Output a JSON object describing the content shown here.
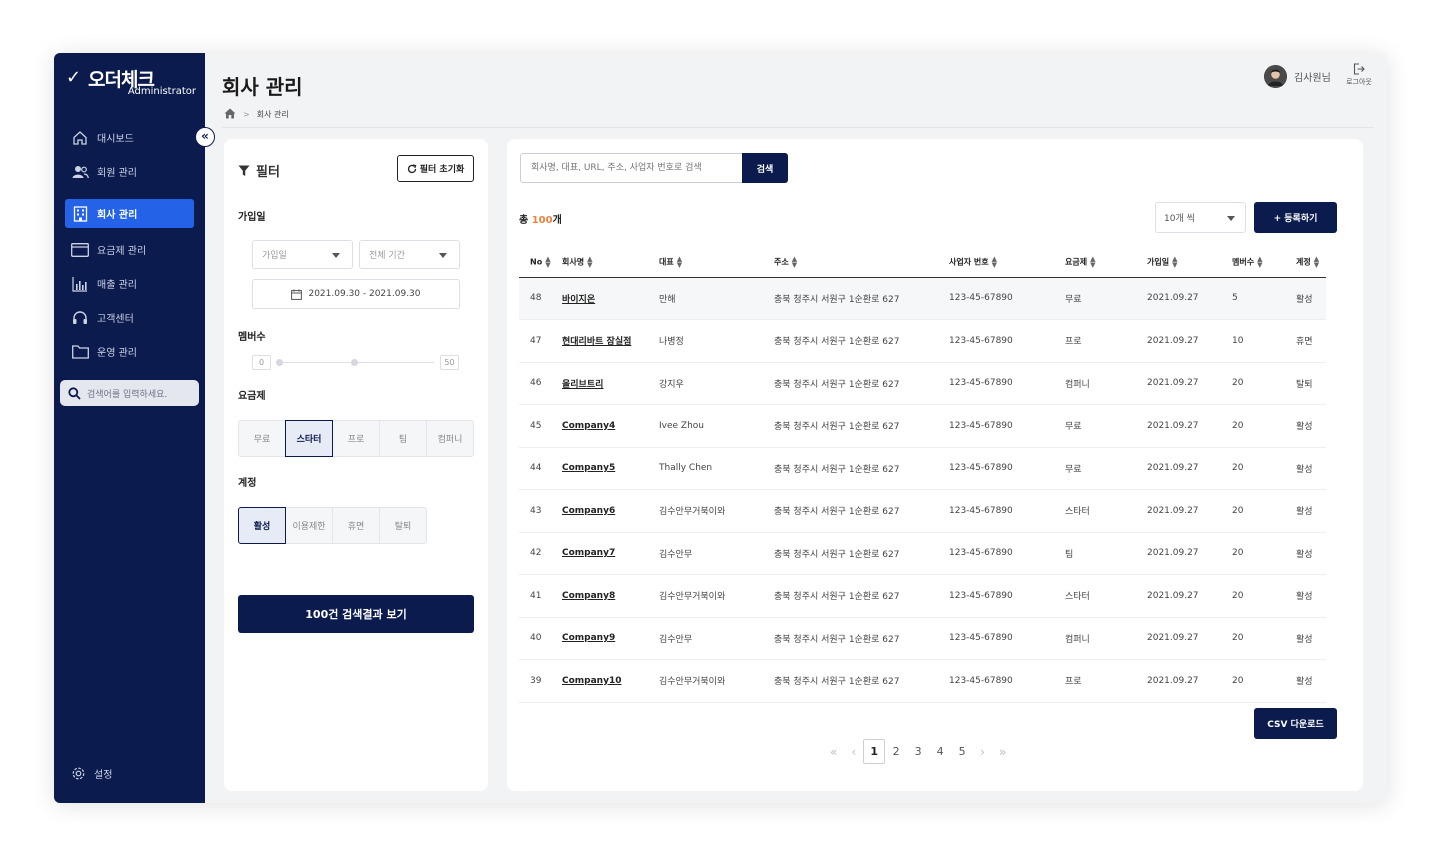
{
  "sidebar": {
    "brand": "오더체크",
    "role": "Administrator",
    "items": [
      {
        "label": "대시보드",
        "icon": "home-icon"
      },
      {
        "label": "회원 관리",
        "icon": "users-icon"
      },
      {
        "label": "회사 관리",
        "icon": "building-icon",
        "active": true
      },
      {
        "label": "요금제 관리",
        "icon": "card-icon"
      },
      {
        "label": "매출 관리",
        "icon": "chart-icon"
      },
      {
        "label": "고객센터",
        "icon": "headset-icon"
      },
      {
        "label": "운영 관리",
        "icon": "folder-icon"
      }
    ],
    "search_placeholder": "검색어를 입력하세요.",
    "settings_label": "설정"
  },
  "header": {
    "title": "회사 관리",
    "breadcrumb_current": "회사 관리",
    "user_name": "김사원님",
    "logout_label": "로그아웃"
  },
  "filter": {
    "title": "필터",
    "reset_label": "필터 초기화",
    "join_date_label": "가입일",
    "join_date_select": "가입일",
    "period_select": "전체 기간",
    "date_range": "2021.09.30 - 2021.09.30",
    "members_label": "멤버수",
    "members_min": "0",
    "members_max": "50",
    "plan_label": "요금제",
    "plans": [
      "무료",
      "스타터",
      "프로",
      "팀",
      "컴퍼니"
    ],
    "plan_selected": "스타터",
    "account_label": "계정",
    "accounts": [
      "활성",
      "이용제한",
      "휴면",
      "탈퇴"
    ],
    "account_selected": "활성",
    "result_button": "100건 검색결과 보기"
  },
  "main": {
    "search_placeholder": "회사명, 대표, URL, 주소, 사업자 번호로 검색",
    "search_button": "검색",
    "total_prefix": "총 ",
    "total_count": "100",
    "total_suffix": "개",
    "page_size": "10개 씩",
    "register_button": "+ 등록하기",
    "columns": [
      "No",
      "회사명",
      "대표",
      "주소",
      "사업자 번호",
      "요금제",
      "가입일",
      "멤버수",
      "계정"
    ],
    "rows": [
      [
        "48",
        "바이지온",
        "만해",
        "충북 청주시 서원구 1순환로 627",
        "123-45-67890",
        "무료",
        "2021.09.27",
        "5",
        "활성"
      ],
      [
        "47",
        "현대리바트 잠실점",
        "나병정",
        "충북 청주시 서원구 1순환로 627",
        "123-45-67890",
        "프로",
        "2021.09.27",
        "10",
        "휴면"
      ],
      [
        "46",
        "올리브트리",
        "강지우",
        "충북 청주시 서원구 1순환로 627",
        "123-45-67890",
        "컴퍼니",
        "2021.09.27",
        "20",
        "탈퇴"
      ],
      [
        "45",
        "Company4",
        "Ivee Zhou",
        "충북 청주시 서원구 1순환로 627",
        "123-45-67890",
        "무료",
        "2021.09.27",
        "20",
        "활성"
      ],
      [
        "44",
        "Company5",
        "Thally Chen",
        "충북 청주시 서원구 1순환로 627",
        "123-45-67890",
        "무료",
        "2021.09.27",
        "20",
        "활성"
      ],
      [
        "43",
        "Company6",
        "김수안무거북이와",
        "충북 청주시 서원구 1순환로 627",
        "123-45-67890",
        "스타터",
        "2021.09.27",
        "20",
        "활성"
      ],
      [
        "42",
        "Company7",
        "김수안무",
        "충북 청주시 서원구 1순환로 627",
        "123-45-67890",
        "팀",
        "2021.09.27",
        "20",
        "활성"
      ],
      [
        "41",
        "Company8",
        "김수안무거북이와",
        "충북 청주시 서원구 1순환로 627",
        "123-45-67890",
        "스타터",
        "2021.09.27",
        "20",
        "활성"
      ],
      [
        "40",
        "Company9",
        "김수안무",
        "충북 청주시 서원구 1순환로 627",
        "123-45-67890",
        "컴퍼니",
        "2021.09.27",
        "20",
        "활성"
      ],
      [
        "39",
        "Company10",
        "김수안무거북이와",
        "충북 청주시 서원구 1순환로 627",
        "123-45-67890",
        "프로",
        "2021.09.27",
        "20",
        "활성"
      ]
    ],
    "csv_button": "CSV 다운로드",
    "pages": [
      "1",
      "2",
      "3",
      "4",
      "5"
    ],
    "current_page": "1"
  }
}
